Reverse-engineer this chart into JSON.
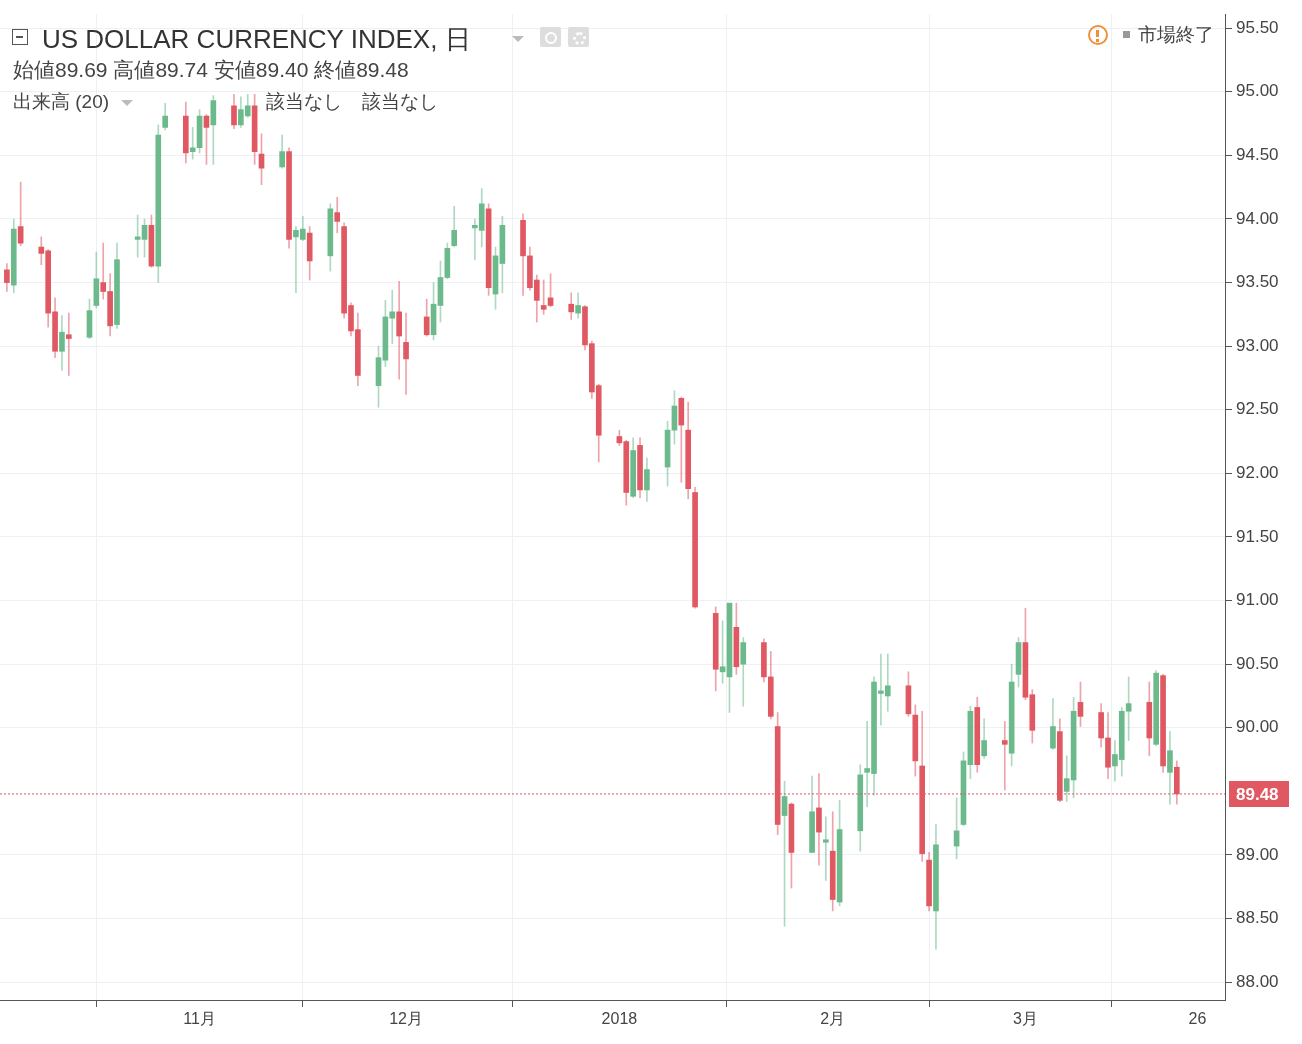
{
  "chart_data": {
    "type": "candlestick",
    "title": "US DOLLAR CURRENCY INDEX, 日",
    "subtitle": "始値89.69  高値89.74  安値89.40  終値89.48",
    "annotations": [
      "出来高 (20)",
      "該当なし",
      "該当なし",
      "市場終了"
    ],
    "x": [
      "2017-10-04",
      "2017-10-05",
      "2017-10-06",
      "2017-10-09",
      "2017-10-10",
      "2017-10-11",
      "2017-10-12",
      "2017-10-13",
      "2017-10-16",
      "2017-10-17",
      "2017-10-18",
      "2017-10-19",
      "2017-10-20",
      "2017-10-23",
      "2017-10-24",
      "2017-10-25",
      "2017-10-26",
      "2017-10-27",
      "2017-10-30",
      "2017-10-31",
      "2017-11-01",
      "2017-11-02",
      "2017-11-03",
      "2017-11-06",
      "2017-11-07",
      "2017-11-08",
      "2017-11-09",
      "2017-11-10",
      "2017-11-13",
      "2017-11-14",
      "2017-11-15",
      "2017-11-16",
      "2017-11-17",
      "2017-11-20",
      "2017-11-21",
      "2017-11-22",
      "2017-11-23",
      "2017-11-24",
      "2017-11-27",
      "2017-11-28",
      "2017-11-29",
      "2017-11-30",
      "2017-12-01",
      "2017-12-04",
      "2017-12-05",
      "2017-12-06",
      "2017-12-07",
      "2017-12-08",
      "2017-12-11",
      "2017-12-12",
      "2017-12-13",
      "2017-12-14",
      "2017-12-15",
      "2017-12-18",
      "2017-12-19",
      "2017-12-20",
      "2017-12-21",
      "2017-12-22",
      "2017-12-25",
      "2017-12-26",
      "2017-12-27",
      "2017-12-28",
      "2017-12-29",
      "2018-01-01",
      "2018-01-02",
      "2018-01-03",
      "2018-01-04",
      "2018-01-05",
      "2018-01-08",
      "2018-01-09",
      "2018-01-10",
      "2018-01-11",
      "2018-01-12",
      "2018-01-15",
      "2018-01-16",
      "2018-01-17",
      "2018-01-18",
      "2018-01-19",
      "2018-01-22",
      "2018-01-23",
      "2018-01-24",
      "2018-01-25",
      "2018-01-26",
      "2018-01-29",
      "2018-01-30",
      "2018-01-31",
      "2018-02-01",
      "2018-02-02",
      "2018-02-05",
      "2018-02-06",
      "2018-02-07",
      "2018-02-08",
      "2018-02-09",
      "2018-02-12",
      "2018-02-13",
      "2018-02-14",
      "2018-02-15",
      "2018-02-16",
      "2018-02-19",
      "2018-02-20",
      "2018-02-21",
      "2018-02-22",
      "2018-02-23",
      "2018-02-26",
      "2018-02-27",
      "2018-02-28",
      "2018-03-01",
      "2018-03-02",
      "2018-03-05",
      "2018-03-06",
      "2018-03-07",
      "2018-03-08",
      "2018-03-09",
      "2018-03-12",
      "2018-03-13",
      "2018-03-14",
      "2018-03-15",
      "2018-03-16",
      "2018-03-19",
      "2018-03-20",
      "2018-03-21",
      "2018-03-22",
      "2018-03-23"
    ],
    "ohlc": [
      [
        93.6,
        93.65,
        93.43,
        93.5
      ],
      [
        93.48,
        94.0,
        93.42,
        93.92
      ],
      [
        93.94,
        94.29,
        93.79,
        93.81
      ],
      [
        93.78,
        93.86,
        93.64,
        93.73
      ],
      [
        93.75,
        93.76,
        93.15,
        93.26
      ],
      [
        93.27,
        93.38,
        92.91,
        92.96
      ],
      [
        92.96,
        93.24,
        92.81,
        93.11
      ],
      [
        93.09,
        93.26,
        92.77,
        93.06
      ],
      [
        93.07,
        93.37,
        93.06,
        93.28
      ],
      [
        93.32,
        93.74,
        93.3,
        93.53
      ],
      [
        93.5,
        93.81,
        93.37,
        93.43
      ],
      [
        93.43,
        93.57,
        93.08,
        93.16
      ],
      [
        93.17,
        93.81,
        93.14,
        93.68
      ],
      [
        93.84,
        94.03,
        93.7,
        93.86
      ],
      [
        93.84,
        94.0,
        93.7,
        93.95
      ],
      [
        93.95,
        94.03,
        93.62,
        93.63
      ],
      [
        93.63,
        94.74,
        93.5,
        94.66
      ],
      [
        94.72,
        94.91,
        94.7,
        94.81
      ],
      [
        94.81,
        94.92,
        94.44,
        94.52
      ],
      [
        94.53,
        94.72,
        94.47,
        94.56
      ],
      [
        94.56,
        94.86,
        94.52,
        94.81
      ],
      [
        94.81,
        94.82,
        94.43,
        94.72
      ],
      [
        94.74,
        94.97,
        94.43,
        94.93
      ],
      [
        94.89,
        94.98,
        94.71,
        94.74
      ],
      [
        94.74,
        94.96,
        94.72,
        94.86
      ],
      [
        94.81,
        94.98,
        94.8,
        94.89
      ],
      [
        94.89,
        94.98,
        94.43,
        94.53
      ],
      [
        94.51,
        94.67,
        94.27,
        94.4
      ],
      [
        94.41,
        94.66,
        94.4,
        94.53
      ],
      [
        94.53,
        94.56,
        93.77,
        93.84
      ],
      [
        93.86,
        93.94,
        93.42,
        93.91
      ],
      [
        93.84,
        94.02,
        93.83,
        93.92
      ],
      [
        93.89,
        93.94,
        93.52,
        93.67
      ],
      [
        93.71,
        94.12,
        93.59,
        94.08
      ],
      [
        94.05,
        94.17,
        93.89,
        93.98
      ],
      [
        93.94,
        93.97,
        93.22,
        93.26
      ],
      [
        93.32,
        93.34,
        93.08,
        93.12
      ],
      [
        93.13,
        93.26,
        92.69,
        92.77
      ],
      [
        92.69,
        93.0,
        92.52,
        92.91
      ],
      [
        92.89,
        93.36,
        92.84,
        93.23
      ],
      [
        93.22,
        93.44,
        93.02,
        93.27
      ],
      [
        93.27,
        93.51,
        92.74,
        93.08
      ],
      [
        93.03,
        93.26,
        92.62,
        92.9
      ],
      [
        93.23,
        93.37,
        93.08,
        93.09
      ],
      [
        93.09,
        93.5,
        93.05,
        93.33
      ],
      [
        93.32,
        93.67,
        93.19,
        93.54
      ],
      [
        93.54,
        93.81,
        93.53,
        93.77
      ],
      [
        93.79,
        94.1,
        93.78,
        93.91
      ],
      [
        93.93,
        94.0,
        93.68,
        93.95
      ],
      [
        93.91,
        94.24,
        93.78,
        94.12
      ],
      [
        94.08,
        94.12,
        93.4,
        93.46
      ],
      [
        93.41,
        93.78,
        93.29,
        93.71
      ],
      [
        93.65,
        94.02,
        93.42,
        93.95
      ],
      [
        93.99,
        94.04,
        93.4,
        93.71
      ],
      [
        93.71,
        93.78,
        93.44,
        93.46
      ],
      [
        93.52,
        93.56,
        93.19,
        93.36
      ],
      [
        93.32,
        93.52,
        93.25,
        93.29
      ],
      [
        93.38,
        93.57,
        93.31,
        93.32
      ],
      [
        93.33,
        93.42,
        93.21,
        93.27
      ],
      [
        93.26,
        93.42,
        93.22,
        93.32
      ],
      [
        93.31,
        93.32,
        92.97,
        93.01
      ],
      [
        93.02,
        93.04,
        92.59,
        92.64
      ],
      [
        92.69,
        92.7,
        92.09,
        92.3
      ],
      [
        92.29,
        92.34,
        92.22,
        92.24
      ],
      [
        92.25,
        92.26,
        91.75,
        91.85
      ],
      [
        91.82,
        92.28,
        91.81,
        92.18
      ],
      [
        92.22,
        92.28,
        91.81,
        91.87
      ],
      [
        91.87,
        92.12,
        91.78,
        92.03
      ],
      [
        92.05,
        92.41,
        91.9,
        92.34
      ],
      [
        92.34,
        92.65,
        92.23,
        92.53
      ],
      [
        92.59,
        92.6,
        91.93,
        92.38
      ],
      [
        92.34,
        92.56,
        91.8,
        91.88
      ],
      [
        91.85,
        91.89,
        90.94,
        90.95
      ],
      [
        90.9,
        90.95,
        90.29,
        90.46
      ],
      [
        90.44,
        90.84,
        90.35,
        90.48
      ],
      [
        90.4,
        90.98,
        90.12,
        90.98
      ],
      [
        90.79,
        90.98,
        90.42,
        90.48
      ],
      [
        90.5,
        90.71,
        90.17,
        90.67
      ],
      [
        90.67,
        90.7,
        90.36,
        90.4
      ],
      [
        90.4,
        90.6,
        90.07,
        90.09
      ],
      [
        90.01,
        90.12,
        89.16,
        89.24
      ],
      [
        89.31,
        89.58,
        88.44,
        89.46
      ],
      [
        89.4,
        89.41,
        88.74,
        89.02
      ],
      [
        89.02,
        89.62,
        89.02,
        89.34
      ],
      [
        89.37,
        89.64,
        88.92,
        89.18
      ],
      [
        89.1,
        89.3,
        88.8,
        89.12
      ],
      [
        89.03,
        89.34,
        88.56,
        88.65
      ],
      [
        88.63,
        89.43,
        88.6,
        89.2
      ],
      [
        89.19,
        89.71,
        89.03,
        89.63
      ],
      [
        89.65,
        90.05,
        89.38,
        89.68
      ],
      [
        89.64,
        90.4,
        89.47,
        90.36
      ],
      [
        90.27,
        90.58,
        90.02,
        90.29
      ],
      [
        90.25,
        90.58,
        90.13,
        90.33
      ],
      [
        90.33,
        90.44,
        90.09,
        90.11
      ],
      [
        90.1,
        90.18,
        89.62,
        89.74
      ],
      [
        89.7,
        90.13,
        88.95,
        89.01
      ],
      [
        88.96,
        89.02,
        88.56,
        88.6
      ],
      [
        88.56,
        89.24,
        88.26,
        89.08
      ],
      [
        89.07,
        89.45,
        88.97,
        89.19
      ],
      [
        89.24,
        89.81,
        89.23,
        89.74
      ],
      [
        89.71,
        90.17,
        89.6,
        90.13
      ],
      [
        90.16,
        90.24,
        89.65,
        89.71
      ],
      [
        89.78,
        90.07,
        89.76,
        89.9
      ],
      [
        89.9,
        90.05,
        89.51,
        89.87
      ],
      [
        89.8,
        90.5,
        89.7,
        90.36
      ],
      [
        90.42,
        90.71,
        90.32,
        90.67
      ],
      [
        90.67,
        90.94,
        90.22,
        90.24
      ],
      [
        90.26,
        90.3,
        89.88,
        89.98
      ],
      [
        89.84,
        90.23,
        89.83,
        90.01
      ],
      [
        89.97,
        90.07,
        89.42,
        89.43
      ],
      [
        89.5,
        89.78,
        89.42,
        89.6
      ],
      [
        89.59,
        90.24,
        89.45,
        90.13
      ],
      [
        90.2,
        90.36,
        90.01,
        90.09
      ],
      [
        90.12,
        90.19,
        89.85,
        89.92
      ],
      [
        89.92,
        90.12,
        89.6,
        89.69
      ],
      [
        89.7,
        89.9,
        89.58,
        89.79
      ],
      [
        89.75,
        90.16,
        89.62,
        90.13
      ],
      [
        90.13,
        90.4,
        89.9,
        90.19
      ],
      [
        90.2,
        90.36,
        89.78,
        89.92
      ],
      [
        89.87,
        90.45,
        89.86,
        90.43
      ],
      [
        90.41,
        90.42,
        89.65,
        89.7
      ],
      [
        89.65,
        89.97,
        89.4,
        89.82
      ],
      [
        89.69,
        89.74,
        89.4,
        89.48
      ]
    ],
    "colors": [
      "#e05862",
      "#6cba8c",
      "#e05862",
      "#e05862",
      "#e05862",
      "#e05862",
      "#6cba8c",
      "#e05862",
      "#6cba8c",
      "#6cba8c",
      "#e05862",
      "#e05862",
      "#6cba8c",
      "#6cba8c",
      "#6cba8c",
      "#e05862",
      "#6cba8c",
      "#6cba8c",
      "#e05862",
      "#6cba8c",
      "#6cba8c",
      "#e05862",
      "#6cba8c",
      "#e05862",
      "#6cba8c",
      "#6cba8c",
      "#e05862",
      "#e05862",
      "#6cba8c",
      "#e05862",
      "#6cba8c",
      "#6cba8c",
      "#e05862",
      "#6cba8c",
      "#e05862",
      "#e05862",
      "#e05862",
      "#e05862",
      "#6cba8c",
      "#6cba8c",
      "#6cba8c",
      "#e05862",
      "#e05862",
      "#e05862",
      "#6cba8c",
      "#6cba8c",
      "#6cba8c",
      "#6cba8c",
      "#6cba8c",
      "#6cba8c",
      "#e05862",
      "#6cba8c",
      "#6cba8c",
      "#e05862",
      "#e05862",
      "#e05862",
      "#e05862",
      "#e05862",
      "#e05862",
      "#6cba8c",
      "#e05862",
      "#e05862",
      "#e05862",
      "#e05862",
      "#e05862",
      "#6cba8c",
      "#e05862",
      "#6cba8c",
      "#6cba8c",
      "#6cba8c",
      "#e05862",
      "#e05862",
      "#e05862",
      "#e05862",
      "#6cba8c",
      "#6cba8c",
      "#e05862",
      "#6cba8c",
      "#e05862",
      "#e05862",
      "#e05862",
      "#6cba8c",
      "#e05862",
      "#6cba8c",
      "#e05862",
      "#6cba8c",
      "#e05862",
      "#6cba8c",
      "#6cba8c",
      "#6cba8c",
      "#6cba8c",
      "#6cba8c",
      "#6cba8c",
      "#e05862",
      "#e05862",
      "#e05862",
      "#e05862",
      "#6cba8c",
      "#6cba8c",
      "#6cba8c",
      "#6cba8c",
      "#e05862",
      "#6cba8c",
      "#e05862",
      "#6cba8c",
      "#6cba8c",
      "#e05862",
      "#e05862",
      "#6cba8c",
      "#e05862",
      "#6cba8c",
      "#6cba8c",
      "#e05862",
      "#e05862",
      "#e05862",
      "#6cba8c",
      "#6cba8c",
      "#6cba8c",
      "#e05862",
      "#6cba8c",
      "#e05862",
      "#6cba8c",
      "#e05862"
    ],
    "xlim": [
      "2017-10-03",
      "2018-03-30"
    ],
    "xticks": [
      {
        "value": "2017-11-01",
        "label": "11月"
      },
      {
        "value": "2017-12-01",
        "label": "12月"
      },
      {
        "value": "2018-01-01",
        "label": "2018"
      },
      {
        "value": "2018-02-01",
        "label": "2月"
      },
      {
        "value": "2018-03-01",
        "label": "3月"
      },
      {
        "value": "2018-03-26",
        "label": "26"
      }
    ],
    "ylim": [
      87.86,
      95.61
    ],
    "yticks": [
      {
        "value": 88,
        "label": "88.00"
      },
      {
        "value": 88.5,
        "label": "88.50"
      },
      {
        "value": 89,
        "label": "89.00"
      },
      {
        "value": 90,
        "label": "90.00"
      },
      {
        "value": 90.5,
        "label": "90.50"
      },
      {
        "value": 91,
        "label": "91.00"
      },
      {
        "value": 91.5,
        "label": "91.50"
      },
      {
        "value": 92,
        "label": "92.00"
      },
      {
        "value": 92.5,
        "label": "92.50"
      },
      {
        "value": 93,
        "label": "93.00"
      },
      {
        "value": 93.5,
        "label": "93.50"
      },
      {
        "value": 94,
        "label": "94.00"
      },
      {
        "value": 94.5,
        "label": "94.50"
      },
      {
        "value": 95,
        "label": "95.00"
      },
      {
        "value": 95.5,
        "label": "95.50"
      }
    ],
    "ref_lines": [
      {
        "axis": "y",
        "value": 89.48,
        "label": "89.48",
        "color": "#e05862",
        "line_style": "dotted"
      }
    ],
    "grid": true,
    "legend": false
  }
}
